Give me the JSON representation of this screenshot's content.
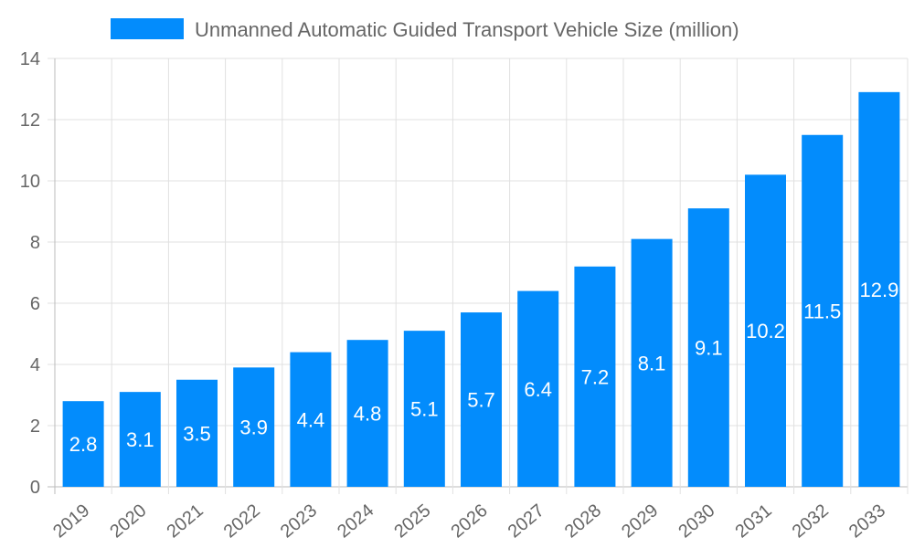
{
  "chart_data": {
    "type": "bar",
    "title": "",
    "xlabel": "",
    "ylabel": "",
    "legend": {
      "position": "top",
      "entries": [
        "Unmanned Automatic Guided Transport Vehicle Size (million)"
      ]
    },
    "categories": [
      "2019",
      "2020",
      "2021",
      "2022",
      "2023",
      "2024",
      "2025",
      "2026",
      "2027",
      "2028",
      "2029",
      "2030",
      "2031",
      "2032",
      "2033"
    ],
    "series": [
      {
        "name": "Unmanned Automatic Guided Transport Vehicle Size (million)",
        "values": [
          2.8,
          3.1,
          3.5,
          3.9,
          4.4,
          4.8,
          5.1,
          5.7,
          6.4,
          7.2,
          8.1,
          9.1,
          10.2,
          11.5,
          12.9
        ],
        "color": "#038cfc"
      }
    ],
    "ylim": [
      0,
      14
    ],
    "yticks": [
      0,
      2,
      4,
      6,
      8,
      10,
      12,
      14
    ],
    "grid": true,
    "data_labels": true
  }
}
